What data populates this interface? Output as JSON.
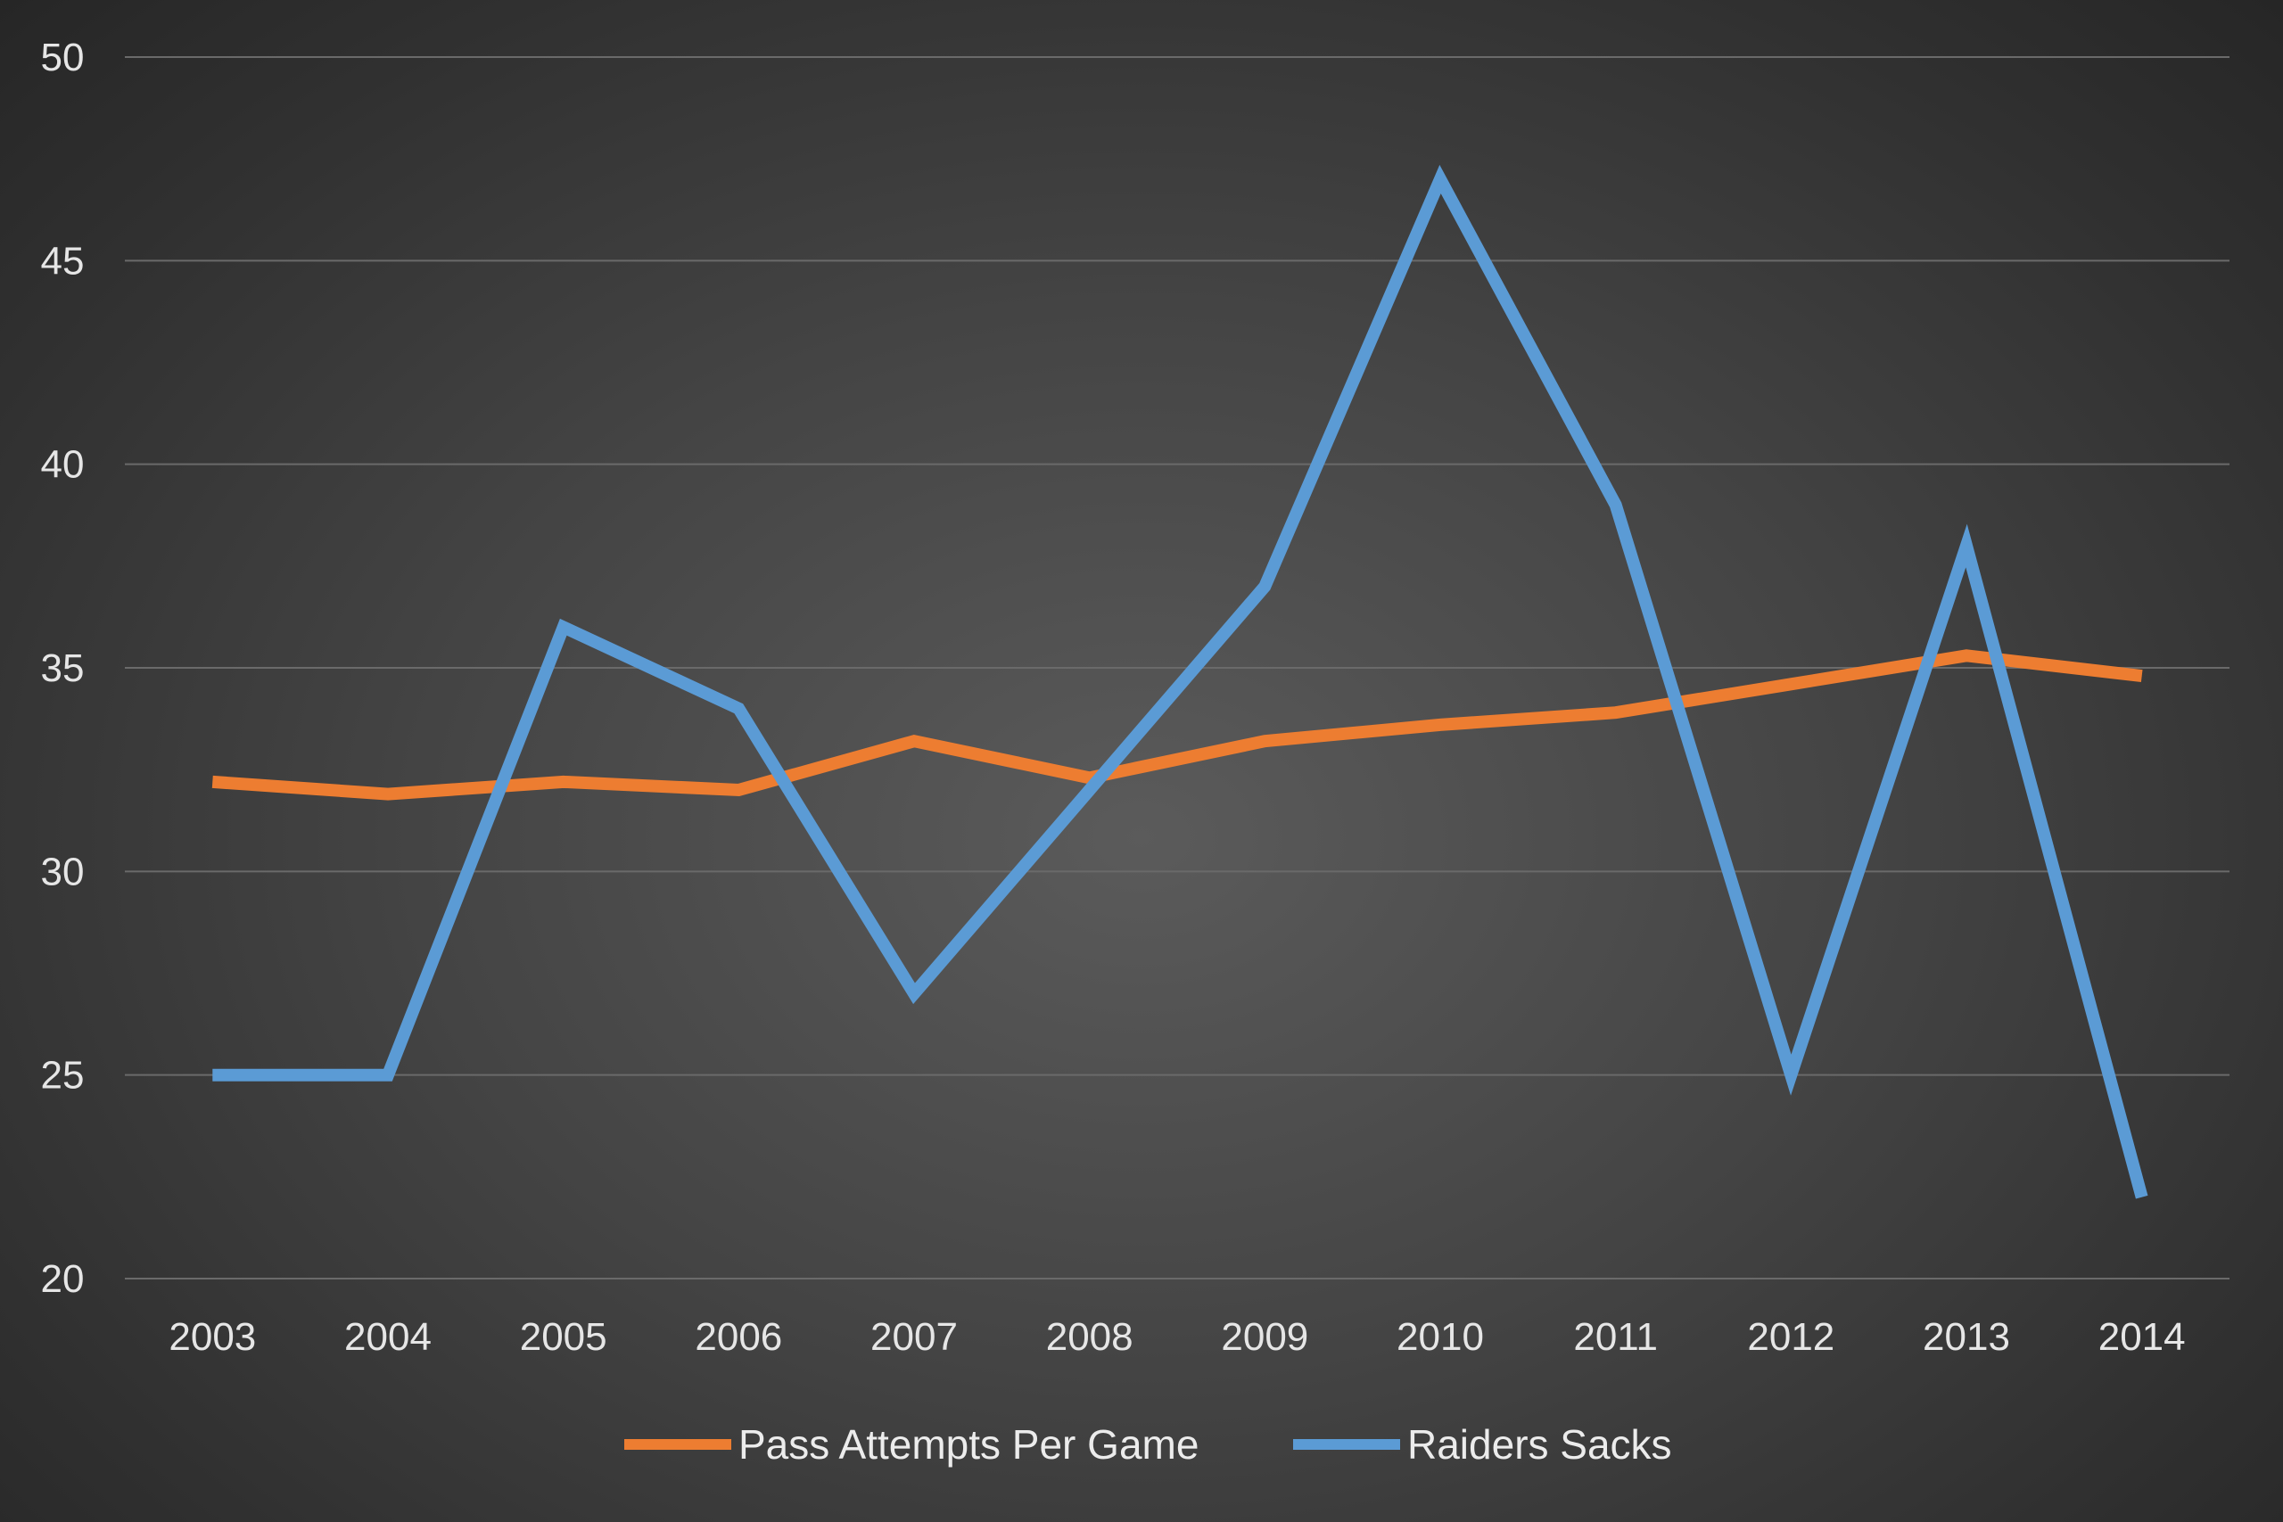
{
  "chart_data": {
    "type": "line",
    "title": "",
    "xlabel": "",
    "ylabel": "",
    "categories": [
      "2003",
      "2004",
      "2005",
      "2006",
      "2007",
      "2008",
      "2009",
      "2010",
      "2011",
      "2012",
      "2013",
      "2014"
    ],
    "ylim": [
      20,
      50
    ],
    "yticks": [
      "20",
      "25",
      "30",
      "35",
      "40",
      "45",
      "50"
    ],
    "grid": true,
    "legend_position": "bottom",
    "series": [
      {
        "name": "Pass Attempts Per Game",
        "color": "#ed7d31",
        "values": [
          32.2,
          31.9,
          32.2,
          32.0,
          33.2,
          32.3,
          33.2,
          33.6,
          33.9,
          34.6,
          35.3,
          34.8
        ]
      },
      {
        "name": "Raiders Sacks",
        "color": "#5b9bd5",
        "values": [
          25,
          25,
          36,
          34,
          27,
          32,
          37,
          47,
          39,
          25,
          38,
          22
        ]
      }
    ]
  }
}
